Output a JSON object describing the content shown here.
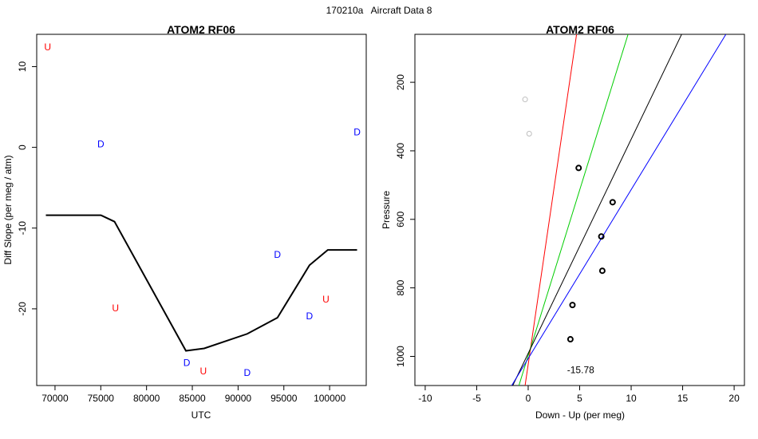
{
  "figure": {
    "suptitle": "170210a   Aircraft Data 8"
  },
  "chart_data": [
    {
      "type": "line",
      "title": "ATOM2 RF06",
      "xlabel": "UTC",
      "ylabel": "Diff Slope (per meg / atm)",
      "xlim": [
        68000,
        104000
      ],
      "ylim": [
        -29.5,
        14
      ],
      "xticks": [
        70000,
        75000,
        80000,
        85000,
        90000,
        95000,
        100000
      ],
      "yticks": [
        -20,
        -10,
        0,
        10
      ],
      "line": {
        "x": [
          69000,
          75000,
          76500,
          84300,
          86300,
          91000,
          94300,
          97800,
          99800,
          103000
        ],
        "y": [
          -8.4,
          -8.4,
          -9.2,
          -25.2,
          -24.9,
          -23.1,
          -21.1,
          -14.6,
          -12.7,
          -12.7
        ]
      },
      "markers": [
        {
          "label": "U",
          "color": "#ff0000",
          "x": 69200,
          "y": 12.4
        },
        {
          "label": "D",
          "color": "#0000ff",
          "x": 75000,
          "y": 0.4
        },
        {
          "label": "U",
          "color": "#ff0000",
          "x": 76600,
          "y": -19.9
        },
        {
          "label": "D",
          "color": "#0000ff",
          "x": 84400,
          "y": -26.7
        },
        {
          "label": "U",
          "color": "#ff0000",
          "x": 86200,
          "y": -27.7
        },
        {
          "label": "D",
          "color": "#0000ff",
          "x": 91000,
          "y": -27.9
        },
        {
          "label": "D",
          "color": "#0000ff",
          "x": 94300,
          "y": -13.3
        },
        {
          "label": "D",
          "color": "#0000ff",
          "x": 97800,
          "y": -20.9
        },
        {
          "label": "U",
          "color": "#ff0000",
          "x": 99600,
          "y": -18.8
        },
        {
          "label": "D",
          "color": "#0000ff",
          "x": 103000,
          "y": 1.9
        }
      ]
    },
    {
      "type": "scatter",
      "title": "ATOM2 RF06",
      "xlabel": "Down - Up (per meg)",
      "ylabel": "Pressure",
      "xlim": [
        -11,
        21
      ],
      "ylim": [
        1085,
        60
      ],
      "yreversed": true,
      "xticks": [
        -10,
        -5,
        0,
        5,
        10,
        15,
        20
      ],
      "yticks": [
        200,
        400,
        600,
        800,
        1000
      ],
      "points_grey": {
        "color": "#bebebe",
        "x": [
          -0.3,
          0.1
        ],
        "y": [
          250,
          350
        ]
      },
      "points_black": {
        "color": "#000000",
        "x": [
          4.9,
          8.2,
          7.1,
          7.2,
          4.3,
          4.1
        ],
        "y": [
          450,
          550,
          650,
          750,
          850,
          950
        ]
      },
      "lines": [
        {
          "color": "#ff0000",
          "x": [
            -0.3,
            4.7
          ],
          "y": [
            1085,
            60
          ]
        },
        {
          "color": "#00cd00",
          "x": [
            -0.9,
            9.7
          ],
          "y": [
            1085,
            60
          ]
        },
        {
          "color": "#000000",
          "x": [
            -1.5,
            14.9
          ],
          "y": [
            1085,
            60
          ]
        },
        {
          "color": "#0000ff",
          "x": [
            -1.6,
            19.2
          ],
          "y": [
            1085,
            60
          ]
        }
      ],
      "annotation": {
        "text": "-15.78",
        "x": 5.1,
        "y": 1040
      }
    }
  ]
}
